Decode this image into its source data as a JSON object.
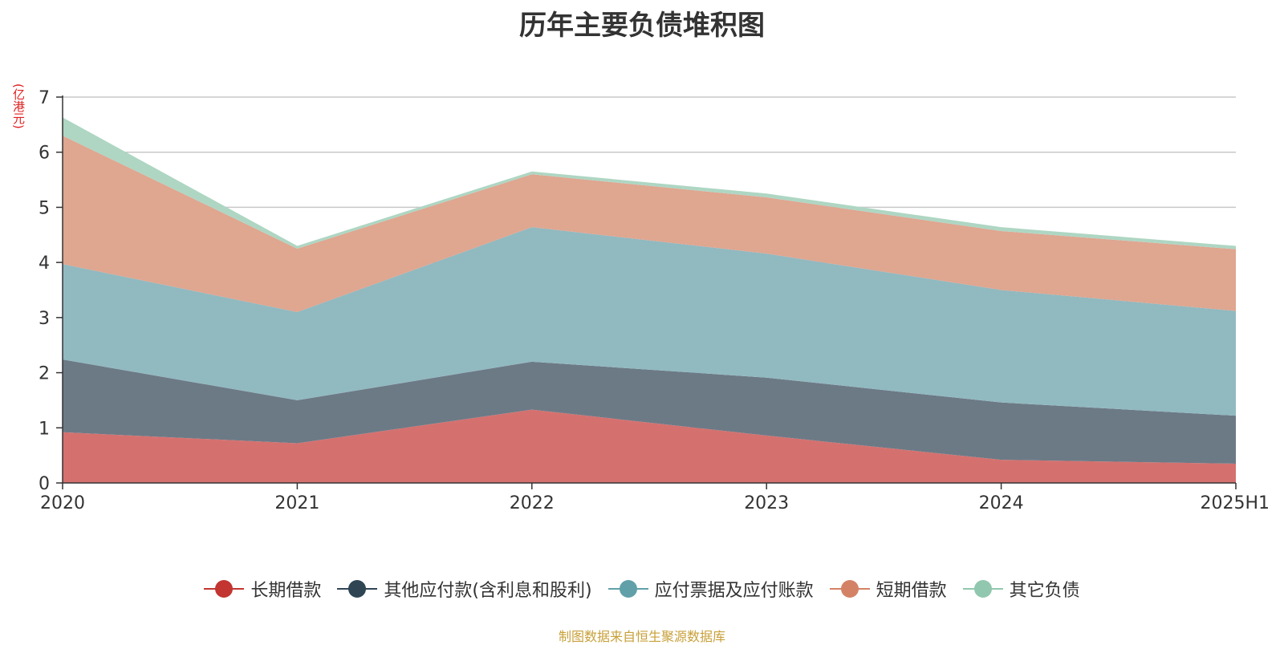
{
  "chart_data": {
    "type": "area",
    "stacked": true,
    "title": "历年主要负债堆积图",
    "ylabel": "(亿港元)",
    "xlabel": "",
    "categories": [
      "2020",
      "2021",
      "2022",
      "2023",
      "2024",
      "2025H1"
    ],
    "ylim": [
      0,
      7
    ],
    "yticks": [
      0,
      1,
      2,
      3,
      4,
      5,
      6,
      7
    ],
    "grid": true,
    "legend_position": "bottom",
    "series": [
      {
        "name": "长期借款",
        "color": "#c23531",
        "fill": "#d4716f",
        "values": [
          0.92,
          0.72,
          1.33,
          0.86,
          0.42,
          0.35
        ]
      },
      {
        "name": "其他应付款(含利息和股利)",
        "color": "#2f4554",
        "fill": "#6c7a86",
        "values": [
          1.32,
          0.78,
          0.87,
          1.05,
          1.04,
          0.87
        ]
      },
      {
        "name": "应付票据及应付账款",
        "color": "#61a0a8",
        "fill": "#91b9c0",
        "values": [
          1.73,
          1.6,
          2.44,
          2.25,
          2.04,
          1.9
        ]
      },
      {
        "name": "短期借款",
        "color": "#d48265",
        "fill": "#dfa690",
        "values": [
          2.33,
          1.15,
          0.96,
          1.02,
          1.07,
          1.12
        ]
      },
      {
        "name": "其它负债",
        "color": "#91c7ae",
        "fill": "#aed6c3",
        "values": [
          0.33,
          0.05,
          0.05,
          0.07,
          0.07,
          0.06
        ]
      }
    ]
  },
  "source_note": "制图数据来自恒生聚源数据库"
}
